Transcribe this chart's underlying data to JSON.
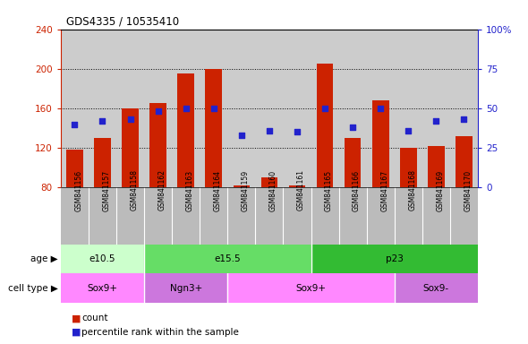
{
  "title": "GDS4335 / 10535410",
  "samples": [
    "GSM841156",
    "GSM841157",
    "GSM841158",
    "GSM841162",
    "GSM841163",
    "GSM841164",
    "GSM841159",
    "GSM841160",
    "GSM841161",
    "GSM841165",
    "GSM841166",
    "GSM841167",
    "GSM841168",
    "GSM841169",
    "GSM841170"
  ],
  "counts": [
    118,
    130,
    160,
    165,
    195,
    200,
    82,
    90,
    82,
    205,
    130,
    168,
    120,
    122,
    132
  ],
  "percentiles": [
    40,
    42,
    43,
    48,
    50,
    50,
    33,
    36,
    35,
    50,
    38,
    50,
    36,
    42,
    43
  ],
  "ylim_left": [
    80,
    240
  ],
  "ylim_right": [
    0,
    100
  ],
  "yticks_left": [
    80,
    120,
    160,
    200,
    240
  ],
  "yticks_right": [
    0,
    25,
    50,
    75,
    100
  ],
  "bar_color": "#CC2200",
  "dot_color": "#2222CC",
  "chart_bg": "#CCCCCC",
  "label_bg": "#BBBBBB",
  "age_groups": [
    {
      "label": "e10.5",
      "start": 0,
      "end": 3,
      "color": "#CCFFCC"
    },
    {
      "label": "e15.5",
      "start": 3,
      "end": 9,
      "color": "#66DD66"
    },
    {
      "label": "p23",
      "start": 9,
      "end": 15,
      "color": "#33BB33"
    }
  ],
  "cell_groups": [
    {
      "label": "Sox9+",
      "start": 0,
      "end": 3,
      "color": "#FF88FF"
    },
    {
      "label": "Ngn3+",
      "start": 3,
      "end": 6,
      "color": "#CC77DD"
    },
    {
      "label": "Sox9+",
      "start": 6,
      "end": 12,
      "color": "#FF88FF"
    },
    {
      "label": "Sox9-",
      "start": 12,
      "end": 15,
      "color": "#CC77DD"
    }
  ],
  "bar_bottom": 80,
  "grid_lines": [
    120,
    160,
    200
  ]
}
